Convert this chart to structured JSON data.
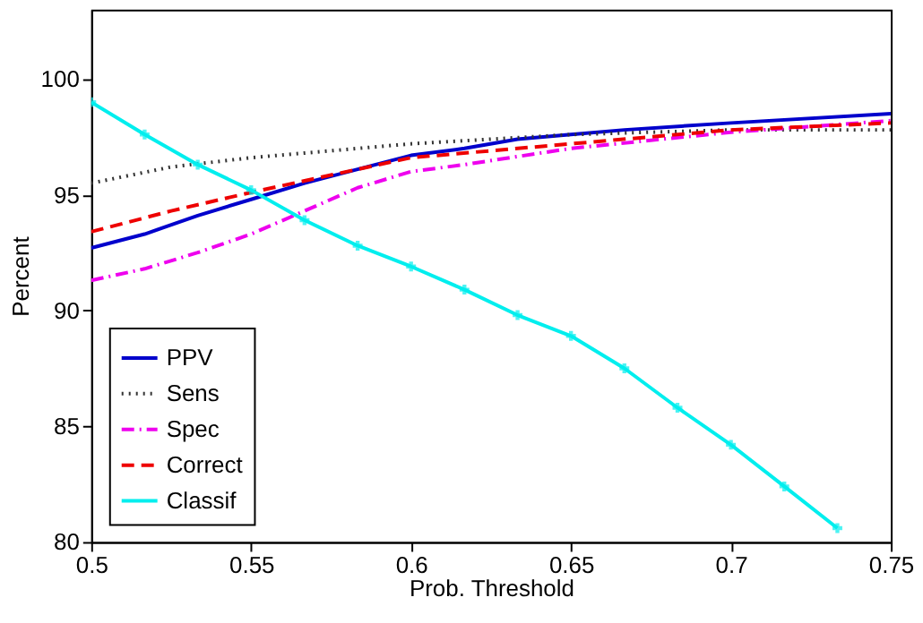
{
  "chart_data": {
    "type": "line",
    "xlabel": "Prob. Threshold",
    "ylabel": "Percent",
    "xlim": [
      0.5,
      0.75
    ],
    "ylim": [
      80,
      103
    ],
    "xticks": [
      0.5,
      0.55,
      0.6,
      0.65,
      0.7,
      0.75
    ],
    "yticks": [
      80,
      85,
      90,
      95,
      100
    ],
    "grid": false,
    "legend": "bottom left",
    "series": [
      {
        "name": "PPV",
        "color": "#0000cc",
        "line_style": "solid",
        "marker": "none",
        "x": [
          0.5,
          0.5167,
          0.5333,
          0.55,
          0.5667,
          0.5833,
          0.6,
          0.6167,
          0.6333,
          0.65,
          0.6667,
          0.7,
          0.75
        ],
        "values": [
          92.7,
          93.3,
          94.1,
          94.8,
          95.5,
          96.1,
          96.7,
          97.0,
          97.4,
          97.6,
          97.8,
          98.1,
          98.5
        ]
      },
      {
        "name": "Sens",
        "color": "#333333",
        "line_style": "dotted",
        "marker": "none",
        "x": [
          0.5,
          0.525,
          0.55,
          0.575,
          0.6,
          0.65,
          0.7,
          0.75
        ],
        "values": [
          95.5,
          96.2,
          96.6,
          96.9,
          97.2,
          97.6,
          97.8,
          97.8
        ]
      },
      {
        "name": "Spec",
        "color": "#ee00ee",
        "line_style": "dashdot",
        "marker": "none",
        "x": [
          0.5,
          0.5167,
          0.5333,
          0.55,
          0.5667,
          0.5833,
          0.6,
          0.6167,
          0.65,
          0.7,
          0.75
        ],
        "values": [
          91.3,
          91.8,
          92.5,
          93.3,
          94.3,
          95.3,
          96.0,
          96.3,
          97.0,
          97.7,
          98.2
        ]
      },
      {
        "name": "Correct",
        "color": "#ee0000",
        "line_style": "dashed",
        "marker": "none",
        "x": [
          0.5,
          0.525,
          0.55,
          0.5667,
          0.5833,
          0.6,
          0.625,
          0.65,
          0.7,
          0.75
        ],
        "values": [
          93.4,
          94.3,
          95.1,
          95.6,
          96.1,
          96.6,
          96.9,
          97.2,
          97.8,
          98.1
        ]
      },
      {
        "name": "Classif",
        "color": "#00eeee",
        "line_style": "solid",
        "marker": "cross",
        "x": [
          0.5,
          0.5167,
          0.5333,
          0.55,
          0.5667,
          0.5833,
          0.6,
          0.6167,
          0.6333,
          0.65,
          0.6667,
          0.6833,
          0.7,
          0.7167,
          0.7333
        ],
        "values": [
          99.0,
          97.6,
          96.3,
          95.2,
          93.9,
          92.8,
          91.9,
          90.9,
          89.8,
          88.9,
          87.5,
          85.8,
          84.2,
          82.4,
          80.6
        ]
      }
    ]
  }
}
